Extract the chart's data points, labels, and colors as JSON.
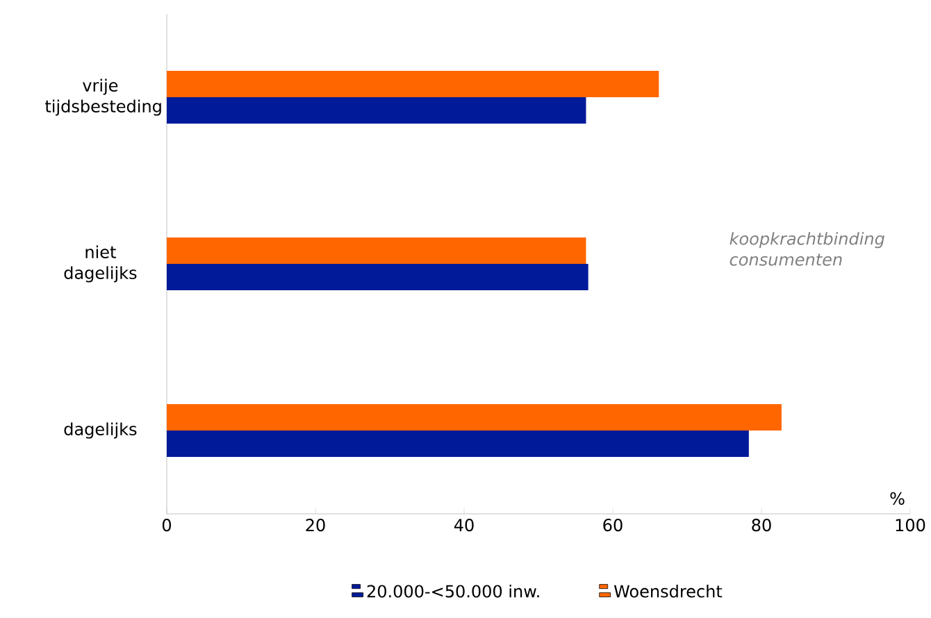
{
  "chart_data": {
    "type": "bar",
    "orientation": "horizontal",
    "categories": [
      "vrije tijdsbesteding",
      "niet dagelijks",
      "dagelijks"
    ],
    "series": [
      {
        "name": "20.000-<50.000 inw.",
        "color": "#001a99",
        "values": [
          56.4,
          56.7,
          78.3
        ]
      },
      {
        "name": "Woensdrecht",
        "color": "#ff6600",
        "values": [
          66.2,
          56.4,
          82.7
        ]
      }
    ],
    "xlim": [
      0,
      100
    ],
    "xticks": [
      0,
      20,
      40,
      60,
      80,
      100
    ],
    "xlabel": "%",
    "annotations": [
      "koopkrachtbinding consumenten"
    ],
    "legend": "bottom",
    "grid": false
  }
}
